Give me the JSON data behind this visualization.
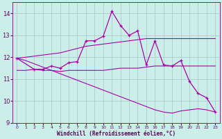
{
  "xlabel": "Windchill (Refroidissement éolien,°C)",
  "background_color": "#cceee8",
  "grid_color": "#aacccc",
  "line_color": "#aa00aa",
  "xlim": [
    -0.5,
    23.5
  ],
  "ylim": [
    9,
    14.5
  ],
  "yticks": [
    9,
    10,
    11,
    12,
    13,
    14
  ],
  "xticks": [
    0,
    1,
    2,
    3,
    4,
    5,
    6,
    7,
    8,
    9,
    10,
    11,
    12,
    13,
    14,
    15,
    16,
    17,
    18,
    19,
    20,
    21,
    22,
    23
  ],
  "series": {
    "line_upper_x": [
      0,
      1,
      2,
      3,
      4,
      5,
      6,
      7,
      8,
      9,
      10,
      11,
      12,
      13,
      14,
      15,
      16,
      17,
      18,
      19,
      20,
      21,
      22,
      23
    ],
    "line_upper_y": [
      11.95,
      12.0,
      12.05,
      12.1,
      12.15,
      12.2,
      12.3,
      12.4,
      12.5,
      12.55,
      12.6,
      12.65,
      12.7,
      12.75,
      12.8,
      12.85,
      12.85,
      12.85,
      12.85,
      12.85,
      12.85,
      12.85,
      12.85,
      12.85
    ],
    "line_flat_x": [
      0,
      1,
      2,
      3,
      4,
      5,
      6,
      7,
      8,
      9,
      10,
      11,
      12,
      13,
      14,
      15,
      16,
      17,
      18,
      19,
      20,
      21,
      22,
      23
    ],
    "line_flat_y": [
      11.4,
      11.4,
      11.45,
      11.4,
      11.4,
      11.35,
      11.4,
      11.4,
      11.4,
      11.4,
      11.4,
      11.45,
      11.5,
      11.5,
      11.5,
      11.55,
      11.6,
      11.6,
      11.6,
      11.6,
      11.6,
      11.6,
      11.6,
      11.6
    ],
    "line_decline_x": [
      0,
      1,
      2,
      3,
      4,
      5,
      6,
      7,
      8,
      9,
      10,
      11,
      12,
      13,
      14,
      15,
      16,
      17,
      18,
      19,
      20,
      21,
      22,
      23
    ],
    "line_decline_y": [
      11.95,
      11.85,
      11.7,
      11.55,
      11.4,
      11.25,
      11.1,
      10.95,
      10.8,
      10.65,
      10.5,
      10.35,
      10.2,
      10.05,
      9.9,
      9.75,
      9.6,
      9.5,
      9.45,
      9.55,
      9.6,
      9.65,
      9.6,
      9.5
    ],
    "line_data_x": [
      0,
      2,
      3,
      4,
      5,
      6,
      7,
      8,
      9,
      10,
      11,
      12,
      13,
      14,
      15,
      16,
      17,
      18,
      19,
      20,
      21,
      22,
      23
    ],
    "line_data_y": [
      11.95,
      11.45,
      11.45,
      11.6,
      11.5,
      11.75,
      11.8,
      12.75,
      12.75,
      12.95,
      14.1,
      13.45,
      13.0,
      13.2,
      11.65,
      12.75,
      11.65,
      11.6,
      11.85,
      10.9,
      10.35,
      10.15,
      9.5
    ]
  }
}
